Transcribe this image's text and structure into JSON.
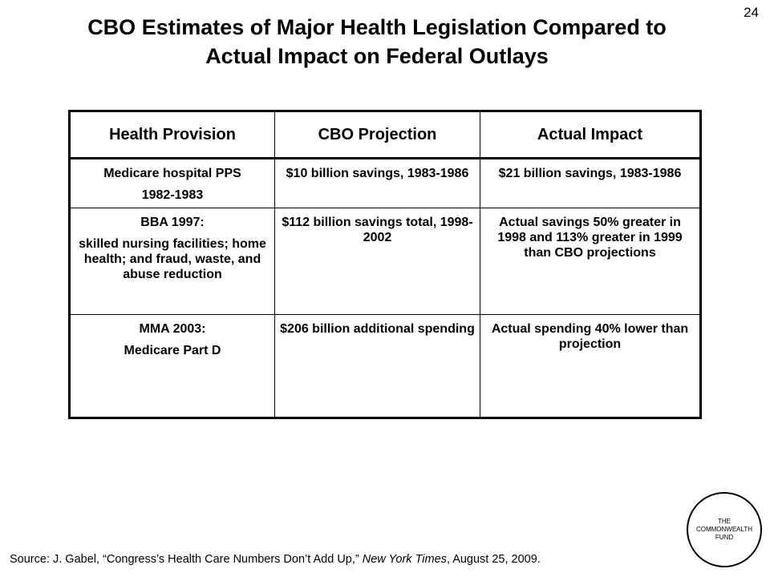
{
  "page_number": "24",
  "title": {
    "line1": "CBO Estimates of Major Health Legislation Compared to",
    "line2": "Actual Impact on Federal Outlays"
  },
  "table": {
    "headers": [
      "Health Provision",
      "CBO Projection",
      "Actual Impact"
    ],
    "rows": [
      {
        "provision": [
          "Medicare hospital PPS",
          "1982-1983"
        ],
        "projection": "$10 billion savings, 1983-1986",
        "actual": "$21 billion savings, 1983-1986"
      },
      {
        "provision": [
          "BBA 1997:",
          "skilled nursing facilities; home health; and fraud, waste, and abuse reduction"
        ],
        "projection": "$112 billion savings total, 1998-2002",
        "actual": "Actual savings 50% greater in 1998 and 113% greater in 1999 than CBO projections"
      },
      {
        "provision": [
          "MMA 2003:",
          "Medicare Part D"
        ],
        "projection": "$206 billion additional spending",
        "actual": "Actual spending 40% lower than projection"
      }
    ]
  },
  "source": {
    "prefix": "Source: J. Gabel, “Congress’s Health Care Numbers Don’t Add Up,” ",
    "publication": "New York Times",
    "suffix": ", August 25, 2009."
  },
  "logo": {
    "line1": "THE",
    "line2": "COMMONWEALTH",
    "line3": "FUND"
  }
}
